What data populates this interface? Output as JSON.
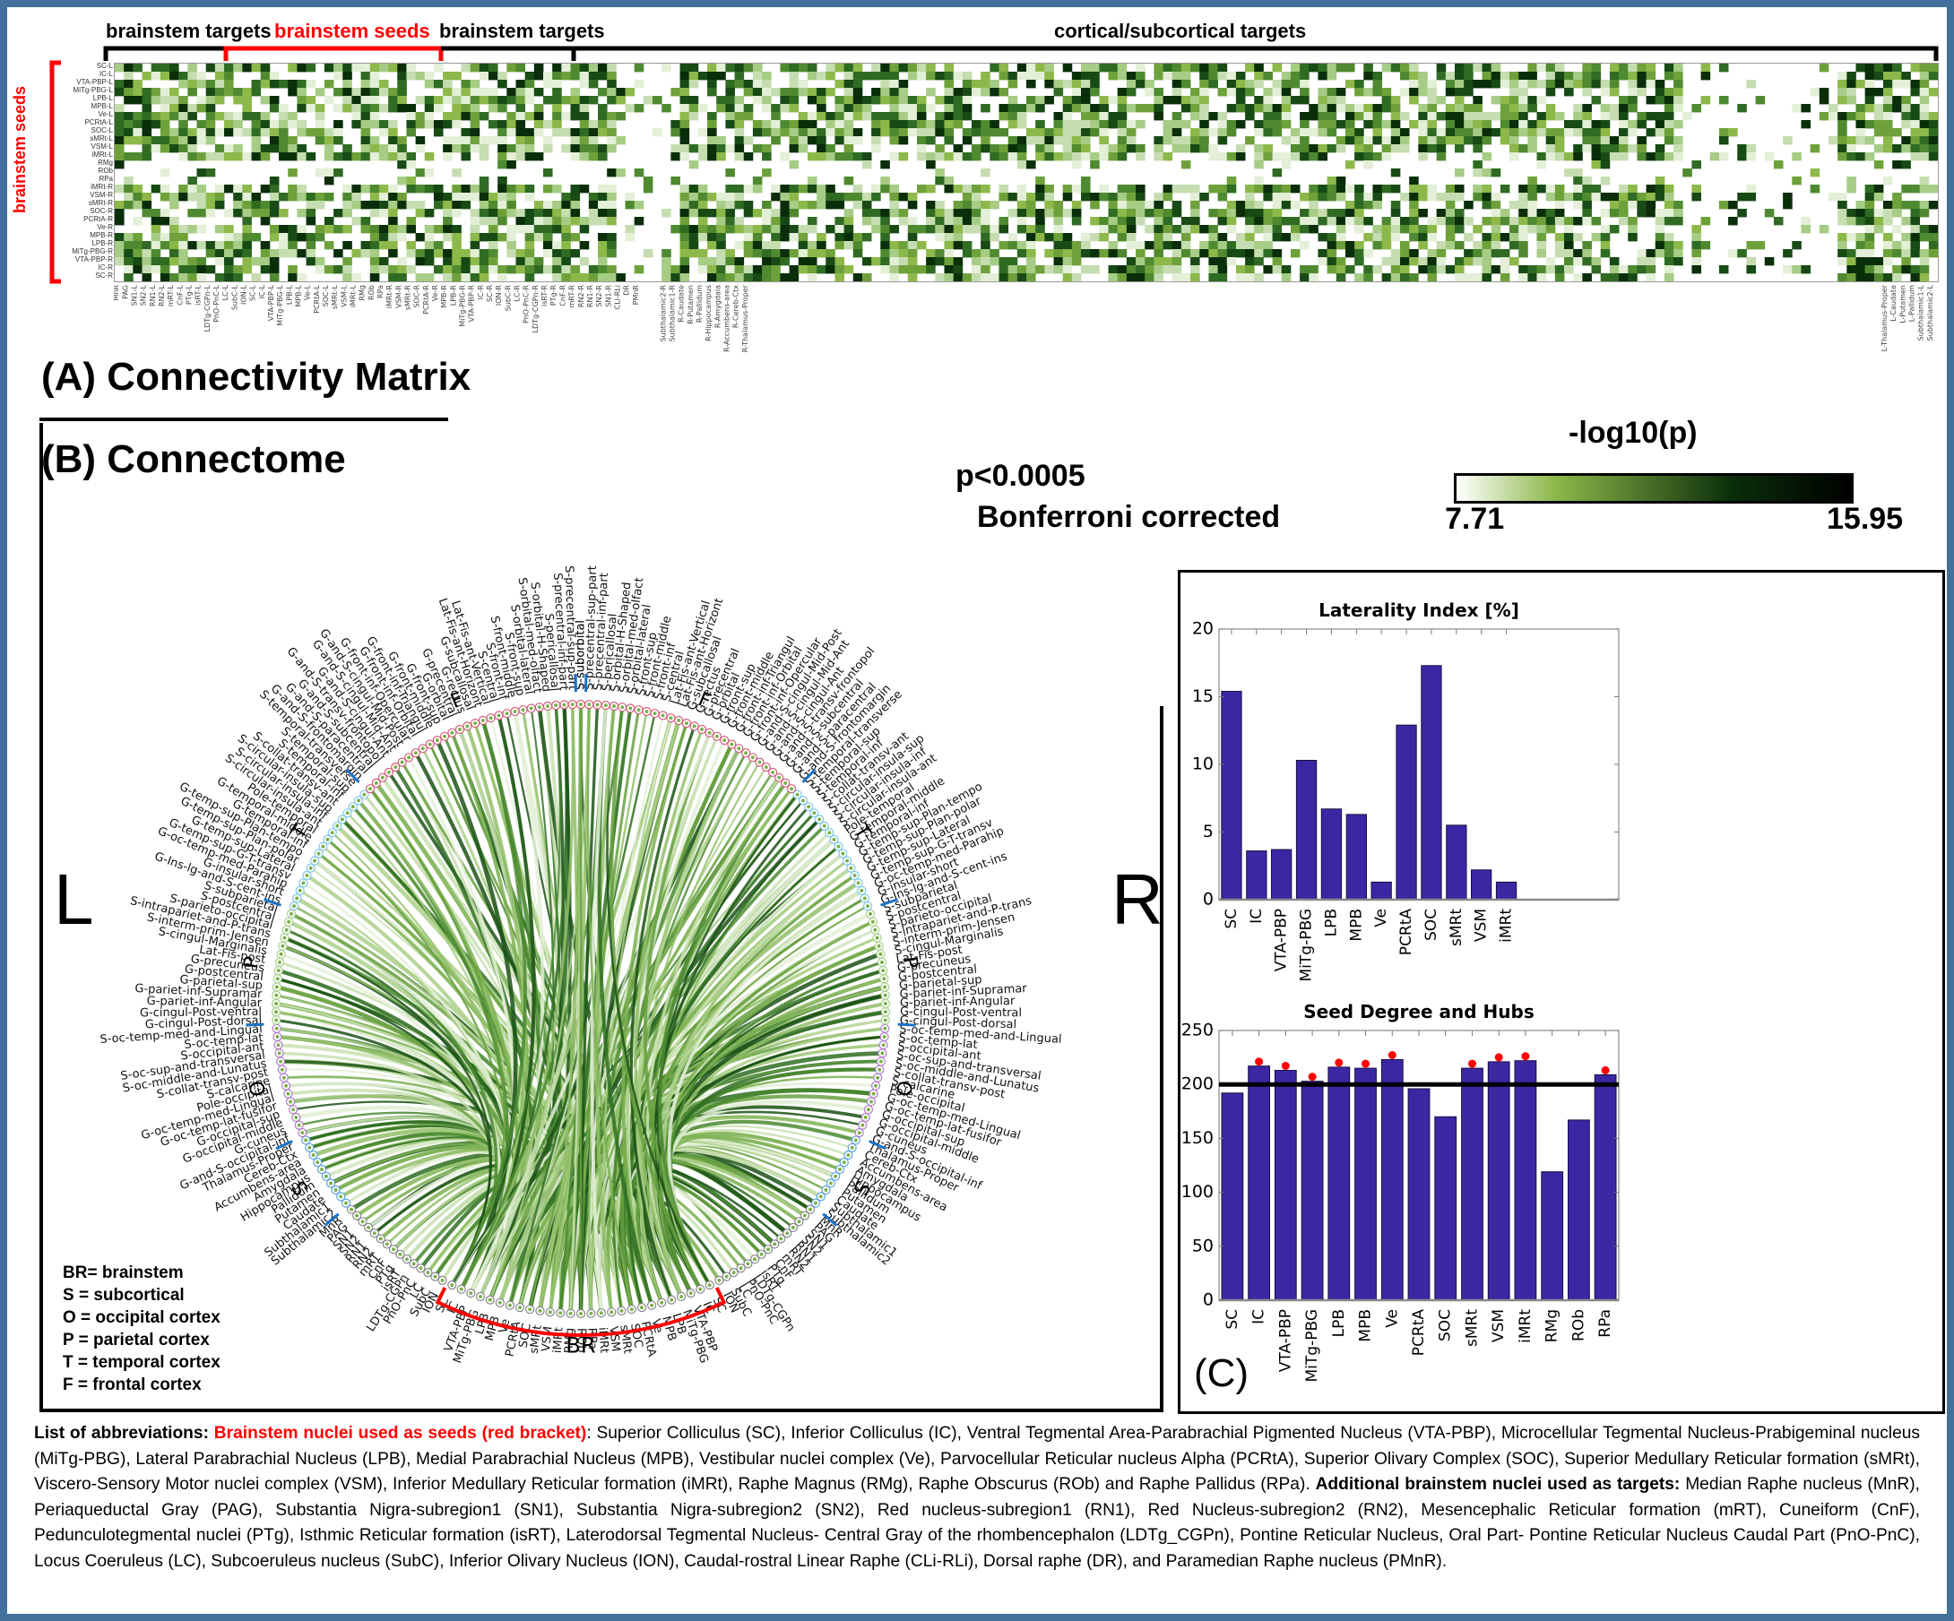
{
  "panel_a": {
    "title": "(A) Connectivity Matrix",
    "header_labels": {
      "brainstem_targets_left": "brainstem targets",
      "brainstem_seeds": "brainstem seeds",
      "brainstem_targets_right": "brainstem targets",
      "cortical_targets": "cortical/subcortical targets"
    },
    "row_axis_label": "brainstem seeds",
    "rows": [
      "SC-L",
      "IC-L",
      "VTA-PBP-L",
      "MiTg-PBG-L",
      "LPB-L",
      "MPB-L",
      "Ve-L",
      "PCRtA-L",
      "SOC-L",
      "sMRt-L",
      "VSM-L",
      "iMRt-L",
      "RMg",
      "ROb",
      "RPa",
      "iMRt-R",
      "VSM-R",
      "sMRt-R",
      "SOC-R",
      "PCRtA-R",
      "Ve-R",
      "MPB-R",
      "LPB-R",
      "MiTg-PBG-R",
      "VTA-PBP-R",
      "IC-R",
      "SC-R"
    ],
    "column_labels_brainstem": [
      "MnR",
      "PAG",
      "SN1-L",
      "SN2-L",
      "RN1-L",
      "RN2-L",
      "mRT-L",
      "CnF-L",
      "PTg-L",
      "isRT-L",
      "LDTg-CGPn-L",
      "PnO-PnC-L",
      "LC-L",
      "SubC-L",
      "ION-L",
      "SC-L",
      "IC-L",
      "VTA-PBP-L",
      "MiTg-PBG-L",
      "LPB-L",
      "MPB-L",
      "Ve-L",
      "PCRtA-L",
      "SOC-L",
      "sMRt-L",
      "VSM-L",
      "iMRt-L",
      "RMg",
      "ROb",
      "RPa",
      "iMRt-R",
      "VSM-R",
      "sMRt-R",
      "SOC-R",
      "PCRtA-R",
      "Ve-R",
      "MPB-R",
      "LPB-R",
      "MiTg-PBG-R",
      "VTA-PBP-R",
      "IC-R",
      "SC-R",
      "ION-R",
      "SubC-R",
      "LC-R",
      "PnO-PnC-R",
      "LDTg-CGPn-R",
      "isRT-R",
      "PTg-R",
      "CnF-R",
      "mRT-R",
      "RN2-R",
      "RN1-R",
      "SN2-R",
      "SN1-R",
      "CLi-RLi",
      "DR",
      "PMnR"
    ],
    "column_labels_cortical_sample": [
      "Subthalamic2-R",
      "Subthalamic1-R",
      "R-Caudate",
      "R-Putamen",
      "R-Pallidum",
      "R-Hippocampus",
      "R-Amygdala",
      "R-Accumbens-area",
      "R-Cereb-Ctx",
      "R-Thalamus-Proper",
      "L-Thalamus-Proper",
      "L-Caudate",
      "L-Putamen",
      "L-Pallidum",
      "Subthalamic1-L",
      "Subthalamic2-L"
    ]
  },
  "colorbar": {
    "title": "-log10(p)",
    "min_label": "7.71",
    "max_label": "15.95",
    "min": 7.71,
    "max": 15.95,
    "colors": [
      "#ffffff",
      "#8db84a",
      "#0a2e0a",
      "#000000"
    ]
  },
  "stats_note": {
    "line1": "p<0.0005",
    "line2": "Bonferroni corrected"
  },
  "panel_b": {
    "title": "(B) Connectome",
    "side_left": "L",
    "side_right": "R",
    "lobe_labels": {
      "F": "F",
      "T": "T",
      "P": "P",
      "O": "O",
      "S": "S",
      "BR": "BR"
    },
    "legend": [
      "BR= brainstem",
      "S = subcortical",
      "O = occipital cortex",
      "P = parietal cortex",
      "T = temporal cortex",
      "F = frontal cortex"
    ],
    "lobe_colors": {
      "F": "#d0607a",
      "T": "#7ec8e3",
      "P": "#a8d08d",
      "O": "#b07cc6",
      "S": "#5fa4d6",
      "BR": "#888888"
    },
    "nodes_left": {
      "F": [
        "S-suborbital",
        "S-precentral-sup-part",
        "S-precentral-inf-part",
        "S-pericallosal",
        "S-orbital-H-Shaped",
        "S-orbital-med-olfact",
        "S-orbital-lateral",
        "S-front-sup",
        "S-front-middle",
        "S-front-inf",
        "S-central",
        "Lat-Fis-ant-Vertical",
        "Lat-Fis-ant-Horizont",
        "G-subcallosal",
        "G-rectus",
        "G-precentral",
        "G-orbital",
        "G-front-sup",
        "G-front-middle",
        "G-front-inf-Triangul",
        "G-front-inf-Orbital",
        "G-front-inf-Opercular",
        "G-and-S-cingul-Mid-Post",
        "G-and-S-cingul-Mid-Ant",
        "G-and-S-cingul-Ant",
        "G-and-S-transv-frontopol",
        "G-and-S-subcentral",
        "G-and-S-paracentral",
        "G-and-S-frontomargin"
      ],
      "T": [
        "S-temporal-transverse",
        "S-temporal-sup",
        "S-temporal-inf",
        "S-collat-transv-ant",
        "S-circular-insula-sup",
        "S-circular-insula-inf",
        "S-circular-insula-ant",
        "Pole-temporal",
        "G-temporal-middle",
        "G-temporal-inf",
        "G-temp-sup-Plan-tempo",
        "G-temp-sup-Plan-polar",
        "G-temp-sup-Lateral",
        "G-temp-sup-G-T-transv",
        "G-oc-temp-med-Parahip",
        "G-insular-short",
        "G-Ins-lg-and-S-cent-ins"
      ],
      "P": [
        "S-subparietal",
        "S-postcentral",
        "S-parieto-occipital",
        "S-intrapariet-and-P-trans",
        "S-interm-prim-Jensen",
        "S-cingul-Marginalis",
        "Lat-Fis-post",
        "G-precuneus",
        "G-postcentral",
        "G-parietal-sup",
        "G-pariet-inf-Supramar",
        "G-pariet-inf-Angular",
        "G-cingul-Post-ventral",
        "G-cingul-Post-dorsal"
      ],
      "O": [
        "S-oc-temp-med-and-Lingual",
        "S-oc-temp-lat",
        "S-occipital-ant",
        "S-oc-sup-and-transversal",
        "S-oc-middle-and-Lunatus",
        "S-collat-transv-post",
        "S-calcarine",
        "Pole-occipital",
        "G-oc-temp-med-Lingual",
        "G-oc-temp-lat-fusifor",
        "G-occipital-sup",
        "G-occipital-middle",
        "G-cuneus",
        "G-and-S-occipital-inf"
      ],
      "S": [
        "Thalamus-Proper",
        "Cereb-Ctx",
        "Accumbens-area",
        "Amygdala",
        "Hippocampus",
        "Pallidum",
        "Putamen",
        "Caudate",
        "Subthalamic1",
        "Subthalamic2"
      ],
      "BR_targets": [
        "MnR",
        "PAG",
        "SN1",
        "SN2",
        "RN1",
        "RN2",
        "mRT",
        "CnF",
        "PTg",
        "isRT",
        "LDTg-CGPn",
        "PnO-PnC",
        "LC",
        "SubC",
        "ION"
      ]
    },
    "nodes_br_seeds": [
      "SC",
      "IC",
      "VTA-PBP",
      "MiTg-PBG",
      "LPB",
      "MPB",
      "Ve",
      "PCRtA",
      "SOC",
      "sMRt",
      "VSM",
      "iMRt",
      "RMg",
      "ROb",
      "RPa",
      "iMRt",
      "VSM",
      "sMRt",
      "SOC",
      "PCRtA",
      "Ve",
      "MPB",
      "LPB",
      "MiTg-PBG",
      "VTA-PBP",
      "IC",
      "SC"
    ],
    "nodes_right_br_targets": [
      "ION",
      "SubC",
      "LC",
      "PnO-PnC",
      "LDTg-CGPn",
      "isRT",
      "PTg",
      "CnF",
      "mRT",
      "RN2",
      "RN1",
      "SN2",
      "SN1",
      "CLi-RLi",
      "DR",
      "PMnR"
    ]
  },
  "panel_c": {
    "label": "(C)",
    "charts": []
  },
  "chart_data": [
    {
      "type": "bar",
      "title": "Laterality Index [%]",
      "xlabel": "",
      "ylabel": "",
      "categories": [
        "SC",
        "IC",
        "VTA-PBP",
        "MiTg-PBG",
        "LPB",
        "MPB",
        "Ve",
        "PCRtA",
        "SOC",
        "sMRt",
        "VSM",
        "iMRt"
      ],
      "values": [
        15.4,
        3.6,
        3.7,
        10.3,
        6.7,
        6.3,
        1.3,
        12.9,
        17.3,
        5.5,
        2.2,
        1.3
      ],
      "ylim": [
        0,
        20
      ],
      "yticks": [
        0,
        5,
        10,
        15,
        20
      ],
      "x_slots": 16,
      "bar_color": "#3b27a3",
      "grid": false
    },
    {
      "type": "bar",
      "title": "Seed Degree and Hubs",
      "xlabel": "",
      "ylabel": "",
      "categories": [
        "SC",
        "IC",
        "VTA-PBP",
        "MiTg-PBG",
        "LPB",
        "MPB",
        "Ve",
        "PCRtA",
        "SOC",
        "sMRt",
        "VSM",
        "iMRt",
        "RMg",
        "ROb",
        "RPa"
      ],
      "values": [
        192,
        217,
        213,
        203,
        216,
        215,
        223,
        196,
        170,
        215,
        221,
        222,
        119,
        167,
        209
      ],
      "hubs": [
        false,
        true,
        true,
        true,
        true,
        true,
        true,
        false,
        false,
        true,
        true,
        true,
        false,
        false,
        true
      ],
      "threshold": 200,
      "ylim": [
        0,
        250
      ],
      "yticks": [
        0,
        50,
        100,
        150,
        200,
        250
      ],
      "bar_color": "#3b27a3",
      "hub_marker_color": "#ff0000",
      "grid": false
    }
  ],
  "footer": {
    "lead": "List of abbreviations:",
    "seeds_heading": "Brainstem nuclei used as seeds (red bracket)",
    "seeds_text": ": Superior Colliculus (SC), Inferior Colliculus (IC), Ventral Tegmental Area-Parabrachial Pigmented Nucleus (VTA-PBP), Microcellular Tegmental Nucleus-Prabigeminal nucleus (MiTg-PBG), Lateral Parabrachial Nucleus (LPB), Medial Parabrachial Nucleus (MPB), Vestibular nuclei complex (Ve), Parvocellular Reticular nucleus Alpha (PCRtA), Superior Olivary Complex (SOC), Superior Medullary Reticular formation (sMRt), Viscero-Sensory Motor nuclei complex (VSM), Inferior Medullary Reticular formation (iMRt), Raphe Magnus (RMg), Raphe Obscurus (ROb) and Raphe Pallidus (RPa).",
    "targets_heading": "Additional brainstem nuclei used as targets:",
    "targets_text": " Median Raphe nucleus (MnR), Periaqueductal Gray (PAG), Substantia Nigra-subregion1 (SN1), Substantia Nigra-subregion2 (SN2), Red nucleus-subregion1 (RN1), Red Nucleus-subregion2 (RN2), Mesencephalic Reticular formation (mRT), Cuneiform (CnF), Pedunculotegmental nuclei (PTg), Isthmic Reticular formation (isRT), Laterodorsal Tegmental Nucleus- Central Gray of the rhombencephalon (LDTg_CGPn), Pontine Reticular Nucleus, Oral Part- Pontine Reticular Nucleus Caudal Part (PnO-PnC), Locus Coeruleus (LC), Subcoeruleus nucleus (SubC), Inferior Olivary Nucleus (ION), Caudal-rostral Linear Raphe (CLi-RLi), Dorsal raphe (DR), and Paramedian Raphe nucleus (PMnR)."
  }
}
